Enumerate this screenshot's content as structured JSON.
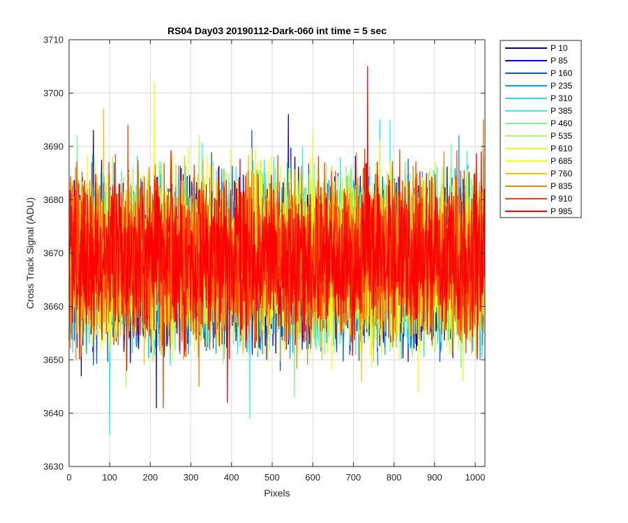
{
  "chart_data": {
    "type": "line",
    "title": "RS04 Day03 20190112-Dark-060 int time = 5 sec",
    "xlabel": "Pixels",
    "ylabel": "Cross Track Signal (ADU)",
    "xlim": [
      0,
      1024
    ],
    "ylim": [
      3630,
      3710
    ],
    "xticks": [
      0,
      100,
      200,
      300,
      400,
      500,
      600,
      700,
      800,
      900,
      1000
    ],
    "yticks": [
      3630,
      3640,
      3650,
      3660,
      3670,
      3680,
      3690,
      3700,
      3710
    ],
    "grid": true,
    "legend_position": "outside-top-right",
    "n_points": 1024,
    "series": [
      {
        "name": "P 10",
        "color": "#00008f",
        "mean": 3668,
        "min": 3647,
        "max": 3693,
        "min_at": 30,
        "max_at": 60
      },
      {
        "name": "P 85",
        "color": "#0000ef",
        "mean": 3668,
        "min": 3641,
        "max": 3696,
        "min_at": 215,
        "max_at": 540
      },
      {
        "name": "P 160",
        "color": "#0050ff",
        "mean": 3668,
        "min": 3648,
        "max": 3693,
        "min_at": 520,
        "max_at": 450
      },
      {
        "name": "P 235",
        "color": "#00a0ff",
        "mean": 3668,
        "min": 3649,
        "max": 3692,
        "min_at": 760,
        "max_at": 960
      },
      {
        "name": "P 310",
        "color": "#10efef",
        "mean": 3668,
        "min": 3636,
        "max": 3695,
        "min_at": 100,
        "max_at": 765
      },
      {
        "name": "P 385",
        "color": "#20ffdf",
        "mean": 3669,
        "min": 3639,
        "max": 3695,
        "min_at": 445,
        "max_at": 790
      },
      {
        "name": "P 460",
        "color": "#70ff8f",
        "mean": 3669,
        "min": 3643,
        "max": 3692,
        "min_at": 555,
        "max_at": 20
      },
      {
        "name": "P 535",
        "color": "#afff50",
        "mean": 3669,
        "min": 3645,
        "max": 3692,
        "min_at": 140,
        "max_at": 320
      },
      {
        "name": "P 610",
        "color": "#dfff20",
        "mean": 3669,
        "min": 3646,
        "max": 3693,
        "min_at": 970,
        "max_at": 600
      },
      {
        "name": "P 685",
        "color": "#ffff00",
        "mean": 3669,
        "min": 3644,
        "max": 3702,
        "min_at": 860,
        "max_at": 210
      },
      {
        "name": "P 760",
        "color": "#ffbf00",
        "mean": 3669,
        "min": 3646,
        "max": 3697,
        "min_at": 720,
        "max_at": 85
      },
      {
        "name": "P 835",
        "color": "#ff8000",
        "mean": 3669,
        "min": 3645,
        "max": 3695,
        "min_at": 320,
        "max_at": 1020
      },
      {
        "name": "P 910",
        "color": "#ff4000",
        "mean": 3669,
        "min": 3641,
        "max": 3694,
        "min_at": 232,
        "max_at": 145
      },
      {
        "name": "P 985",
        "color": "#ff0000",
        "mean": 3669,
        "min": 3642,
        "max": 3705,
        "min_at": 390,
        "max_at": 735
      }
    ]
  }
}
